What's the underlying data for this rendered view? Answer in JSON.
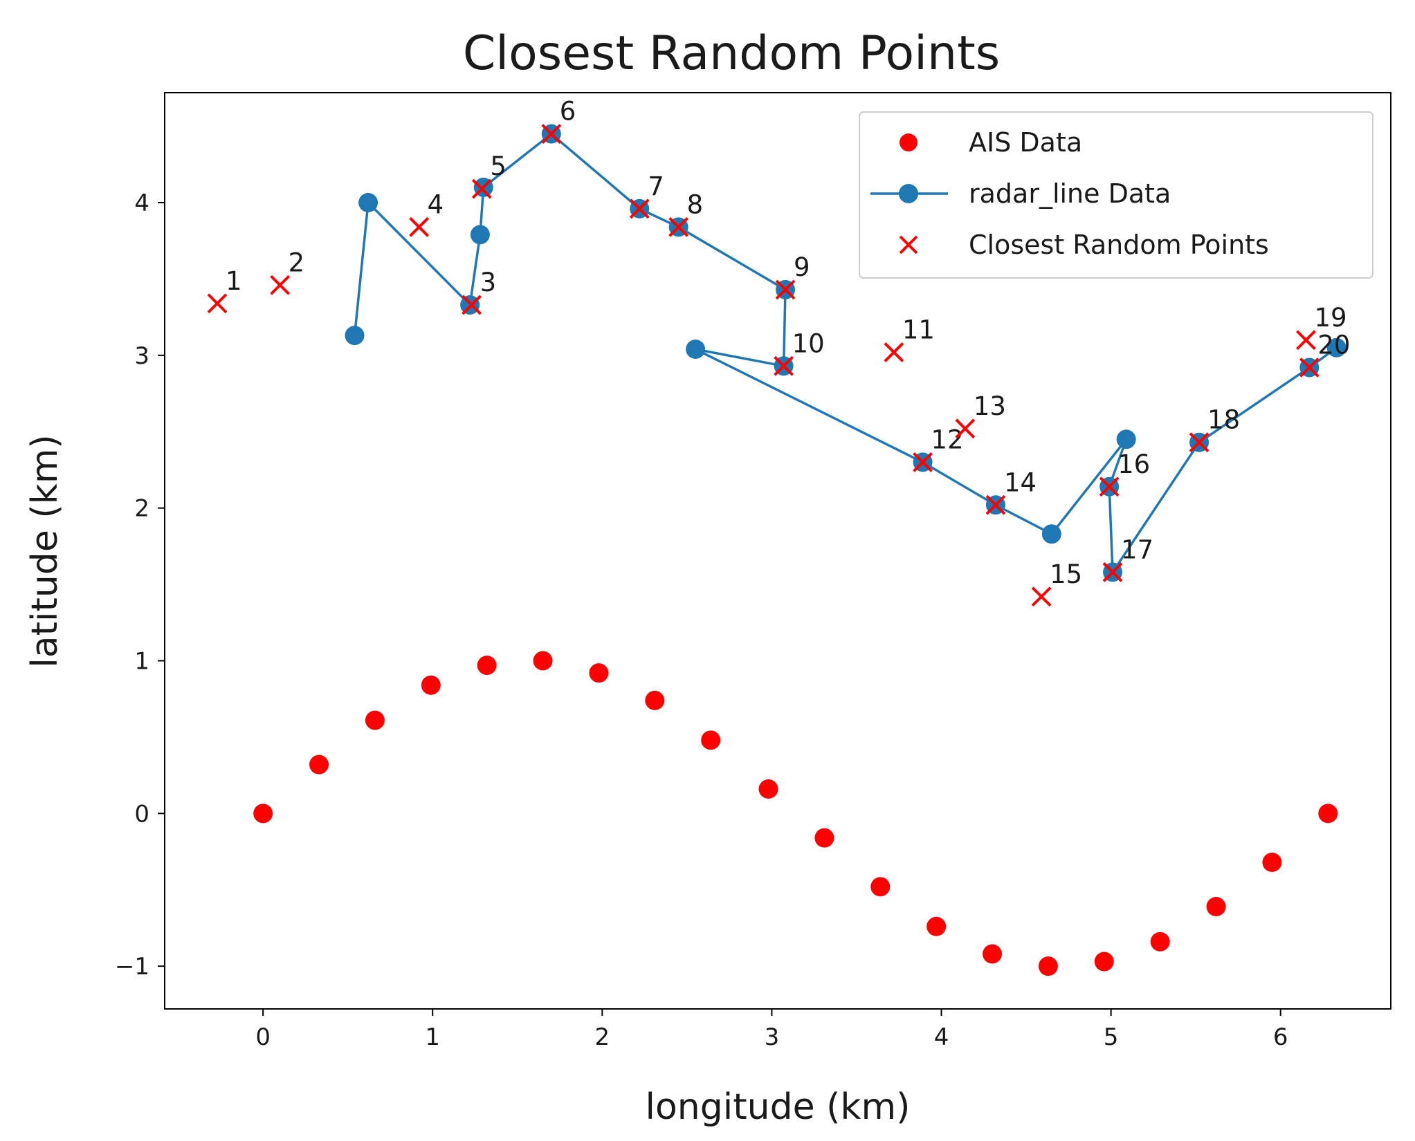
{
  "chart_data": {
    "type": "scatter",
    "title": "Closest Random Points",
    "xlabel": "longitude (km)",
    "ylabel": "latitude (km)",
    "xlim": [
      -0.58,
      6.65
    ],
    "ylim": [
      -1.28,
      4.72
    ],
    "xticks": [
      0,
      1,
      2,
      3,
      4,
      5,
      6
    ],
    "yticks": [
      -1,
      0,
      1,
      2,
      3,
      4
    ],
    "xtick_labels": [
      "0",
      "1",
      "2",
      "3",
      "4",
      "5",
      "6"
    ],
    "ytick_labels": [
      "−1",
      "0",
      "1",
      "2",
      "3",
      "4"
    ],
    "grid": false,
    "legend_position": "top-right",
    "colors": {
      "ais": "#ff0000",
      "radar": "#1f77b4",
      "closest": "#ff0000"
    },
    "series": [
      {
        "name": "AIS Data",
        "kind": "scatter",
        "x": [
          0.0,
          0.33,
          0.66,
          0.99,
          1.32,
          1.65,
          1.98,
          2.31,
          2.64,
          2.98,
          3.31,
          3.64,
          3.97,
          4.3,
          4.63,
          4.96,
          5.29,
          5.62,
          5.95,
          6.28
        ],
        "y": [
          0.0,
          0.32,
          0.61,
          0.84,
          0.97,
          1.0,
          0.92,
          0.74,
          0.48,
          0.16,
          -0.16,
          -0.48,
          -0.74,
          -0.92,
          -1.0,
          -0.97,
          -0.84,
          -0.61,
          -0.32,
          0.0
        ]
      },
      {
        "name": "radar_line Data",
        "kind": "line",
        "x": [
          0.54,
          0.62,
          1.22,
          1.28,
          1.3,
          1.7,
          2.22,
          2.45,
          3.08,
          3.07,
          2.55,
          3.89,
          4.32,
          4.65,
          5.09,
          4.99,
          5.01,
          5.52,
          6.17,
          6.33
        ],
        "y": [
          3.13,
          4.0,
          3.33,
          3.79,
          4.1,
          4.45,
          3.96,
          3.84,
          3.43,
          2.93,
          3.04,
          2.3,
          2.02,
          1.83,
          2.45,
          2.14,
          1.58,
          2.43,
          2.92,
          3.05
        ]
      },
      {
        "name": "Closest Random Points",
        "kind": "scatter-x",
        "x": [
          -0.27,
          0.1,
          1.23,
          0.92,
          1.29,
          1.7,
          2.22,
          2.45,
          3.08,
          3.07,
          3.72,
          3.89,
          4.14,
          4.32,
          4.59,
          4.99,
          5.01,
          5.52,
          6.15,
          6.17
        ],
        "y": [
          3.34,
          3.46,
          3.33,
          3.84,
          4.09,
          4.45,
          3.96,
          3.84,
          3.43,
          2.93,
          3.02,
          2.3,
          2.52,
          2.02,
          1.42,
          2.14,
          1.58,
          2.43,
          3.1,
          2.92
        ],
        "labels": [
          "1",
          "2",
          "3",
          "4",
          "5",
          "6",
          "7",
          "8",
          "9",
          "10",
          "11",
          "12",
          "13",
          "14",
          "15",
          "16",
          "17",
          "18",
          "19",
          "20"
        ]
      }
    ]
  }
}
